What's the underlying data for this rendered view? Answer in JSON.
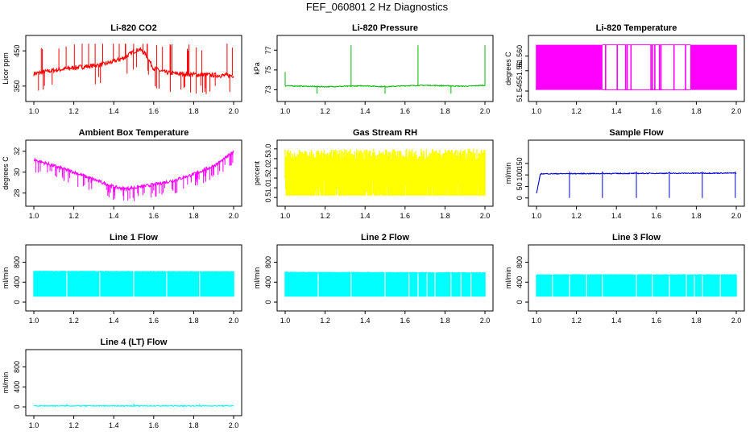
{
  "page": {
    "title": "FEF_060801  2 Hz Diagnostics"
  },
  "chart_data": [
    {
      "id": "co2",
      "type": "line",
      "title": "Li-820 CO2",
      "ylabel": "Licor ppm",
      "color": "#ff0000",
      "xlim": [
        1.0,
        2.0
      ],
      "ylim": [
        320,
        480
      ],
      "xticks": [
        "1.0",
        "1.2",
        "1.4",
        "1.6",
        "1.8",
        "2.0"
      ],
      "yticks": [
        350,
        450
      ],
      "series": [
        {
          "x": [
            1.0,
            1.05,
            1.1,
            1.15,
            1.2,
            1.25,
            1.3,
            1.35,
            1.4,
            1.45,
            1.5,
            1.53,
            1.56,
            1.6,
            1.65,
            1.7,
            1.75,
            1.8,
            1.85,
            1.9,
            1.95,
            2.0
          ],
          "values": [
            385,
            390,
            395,
            398,
            402,
            405,
            408,
            412,
            420,
            430,
            448,
            455,
            440,
            400,
            390,
            386,
            384,
            383,
            382,
            381,
            380,
            380
          ]
        }
      ],
      "spikes": "dense upward and downward spikes"
    },
    {
      "id": "pressure",
      "type": "line",
      "title": "Li-820 Pressure",
      "ylabel": "kPa",
      "color": "#00bb00",
      "xlim": [
        1.0,
        2.0
      ],
      "ylim": [
        72.3,
        78.0
      ],
      "xticks": [
        "1.0",
        "1.2",
        "1.4",
        "1.6",
        "1.8",
        "2.0"
      ],
      "yticks": [
        73,
        75,
        77
      ],
      "series": [
        {
          "x": [
            1.0,
            1.1,
            1.2,
            1.3,
            1.4,
            1.5,
            1.6,
            1.7,
            1.8,
            1.9,
            2.0
          ],
          "values": [
            73.4,
            73.35,
            73.3,
            73.35,
            73.4,
            73.3,
            73.4,
            73.45,
            73.4,
            73.35,
            73.45
          ]
        }
      ],
      "spikes": "occasional spikes up to 77.5 and dips to 72.6"
    },
    {
      "id": "licor_temp",
      "type": "line",
      "title": "Li-820 Temperature",
      "ylabel": "degrees C",
      "color": "#ff00ff",
      "xlim": [
        1.0,
        2.0
      ],
      "ylim": [
        51.5425,
        51.5675
      ],
      "xticks": [
        "1.0",
        "1.2",
        "1.4",
        "1.6",
        "1.8",
        "2.0"
      ],
      "yticks": [
        "51.545",
        "51.56",
        "51.560"
      ],
      "series": [
        {
          "x": [
            1.0,
            1.3,
            1.32,
            1.77,
            1.78,
            2.0
          ],
          "values": [
            51.55,
            51.55,
            51.55,
            51.55,
            51.55,
            51.55
          ]
        }
      ],
      "spikes": "solid oscillation 51.545-51.565 from 1.0-1.33 and 1.77-2.0, sparse between"
    },
    {
      "id": "ambient_temp",
      "type": "line",
      "title": "Ambient Box Temperature",
      "ylabel": "degrees C",
      "color": "#ff00ff",
      "xlim": [
        1.0,
        2.0
      ],
      "ylim": [
        27.2,
        32.6
      ],
      "xticks": [
        "1.0",
        "1.2",
        "1.4",
        "1.6",
        "1.8",
        "2.0"
      ],
      "yticks": [
        28,
        30,
        32
      ],
      "series": [
        {
          "x": [
            1.0,
            1.1,
            1.2,
            1.3,
            1.4,
            1.45,
            1.5,
            1.6,
            1.7,
            1.8,
            1.9,
            1.95,
            2.0
          ],
          "values": [
            31.2,
            30.6,
            30.0,
            29.3,
            28.6,
            28.4,
            28.5,
            28.8,
            29.2,
            29.8,
            30.6,
            31.2,
            32.0
          ]
        }
      ],
      "spikes": "dense downward dips about 1 degree"
    },
    {
      "id": "rh",
      "type": "band",
      "title": "Gas Stream RH",
      "ylabel": "percent",
      "color": "#ffff00",
      "xlim": [
        1.0,
        2.0
      ],
      "ylim": [
        0.3,
        3.2
      ],
      "xticks": [
        "1.0",
        "1.2",
        "1.4",
        "1.6",
        "1.8",
        "2.0"
      ],
      "yticks": [
        "0.5",
        "1.0",
        "1.5",
        "2.0",
        "2.5",
        "3.0"
      ],
      "series": [
        {
          "x": [
            1.0,
            2.0
          ],
          "low": [
            0.6,
            0.6
          ],
          "high": [
            3.0,
            3.0
          ]
        }
      ]
    },
    {
      "id": "sample_flow",
      "type": "line",
      "title": "Sample Flow",
      "ylabel": "ml/min",
      "color": "#0000dd",
      "xlim": [
        1.0,
        2.0
      ],
      "ylim": [
        -15,
        230
      ],
      "xticks": [
        "1.0",
        "1.2",
        "1.4",
        "1.6",
        "1.8",
        "2.0"
      ],
      "yticks": [
        0,
        50,
        100,
        150
      ],
      "series": [
        {
          "x": [
            1.0,
            1.02,
            2.0
          ],
          "values": [
            20,
            105,
            108
          ]
        }
      ],
      "dips": [
        1.165,
        1.33,
        1.5,
        1.665,
        1.83,
        1.995
      ]
    },
    {
      "id": "line1",
      "type": "band",
      "title": "Line 1 Flow",
      "ylabel": "ml/min",
      "color": "#00ffff",
      "xlim": [
        1.0,
        2.0
      ],
      "ylim": [
        -80,
        1050
      ],
      "xticks": [
        "1.0",
        "1.2",
        "1.4",
        "1.6",
        "1.8",
        "2.0"
      ],
      "yticks": [
        0,
        400,
        800
      ],
      "series": [
        {
          "x": [
            1.0,
            2.0
          ],
          "low": [
            110,
            110
          ],
          "high": [
            630,
            620
          ]
        }
      ],
      "gaps": [
        1.165,
        1.33,
        1.5,
        1.665,
        1.83
      ]
    },
    {
      "id": "line2",
      "type": "band",
      "title": "Line 2 Flow",
      "ylabel": "ml/min",
      "color": "#00ffff",
      "xlim": [
        1.0,
        2.0
      ],
      "ylim": [
        -80,
        1050
      ],
      "xticks": [
        "1.0",
        "1.2",
        "1.4",
        "1.6",
        "1.8",
        "2.0"
      ],
      "yticks": [
        0,
        400,
        800
      ],
      "series": [
        {
          "x": [
            1.0,
            2.0
          ],
          "low": [
            110,
            110
          ],
          "high": [
            610,
            600
          ]
        }
      ],
      "gaps": [
        1.165,
        1.33,
        1.5,
        1.62,
        1.665,
        1.71,
        1.75,
        1.83,
        1.88,
        1.93
      ]
    },
    {
      "id": "line3",
      "type": "band",
      "title": "Line 3 Flow",
      "ylabel": "ml/min",
      "color": "#00ffff",
      "xlim": [
        1.0,
        2.0
      ],
      "ylim": [
        -80,
        1050
      ],
      "xticks": [
        "1.0",
        "1.2",
        "1.4",
        "1.6",
        "1.8",
        "2.0"
      ],
      "yticks": [
        0,
        400,
        800
      ],
      "series": [
        {
          "x": [
            1.0,
            2.0
          ],
          "low": [
            110,
            110
          ],
          "high": [
            560,
            560
          ]
        }
      ],
      "gaps": [
        1.08,
        1.165,
        1.25,
        1.33,
        1.5,
        1.58,
        1.665,
        1.75,
        1.79,
        1.83,
        1.92
      ]
    },
    {
      "id": "line4",
      "type": "line",
      "title": "Line 4 (LT) Flow",
      "ylabel": "ml/min",
      "color": "#00ffff",
      "xlim": [
        1.0,
        2.0
      ],
      "ylim": [
        -80,
        1050
      ],
      "xticks": [
        "1.0",
        "1.2",
        "1.4",
        "1.6",
        "1.8",
        "2.0"
      ],
      "yticks": [
        0,
        400,
        800
      ],
      "series": [
        {
          "x": [
            1.0,
            2.0
          ],
          "values": [
            20,
            20
          ]
        }
      ]
    }
  ]
}
